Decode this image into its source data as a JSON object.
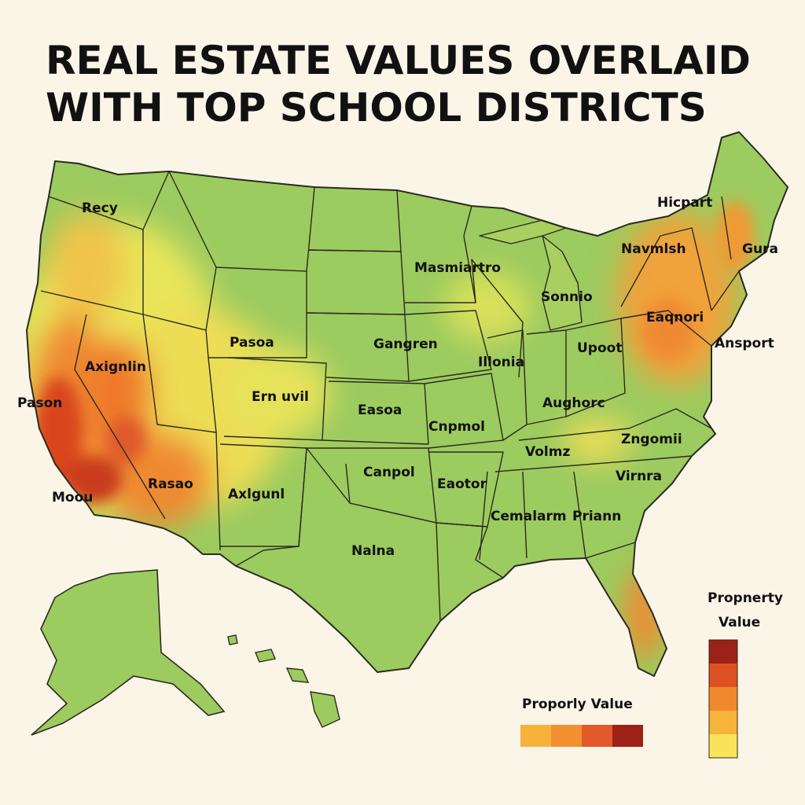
{
  "title": {
    "line1": "REAL ESTATE VALUES OVERLAID",
    "line2": "WITH TOP SCHOOL DISTRICTS"
  },
  "map": {
    "labels": {
      "recy": "Recy",
      "axignlin": "Axignlin",
      "pason": "Pason",
      "moou": "Moou",
      "rasao": "Rasao",
      "pasoa": "Pasoa",
      "ern_uvil": "Ern uvil",
      "axlgunl": "Axlgunl",
      "masmiartro": "Masmiartro",
      "gangren": "Gangren",
      "easoa": "Easoa",
      "canpol": "Canpol",
      "cnpmol": "Cnpmol",
      "nalna": "Nalna",
      "illonia": "Illonia",
      "eaotor": "Eaotor",
      "cemalarm": "Cemalarm",
      "sonnio": "Sonnio",
      "upoot": "Upoot",
      "aughorc": "Aughorc",
      "volmz": "Volmz",
      "zngomii": "Zngomii",
      "virnra": "Virnra",
      "priann": "Priann",
      "eaqnori": "Eaqnori",
      "ansport": "Ansport",
      "navmlsh": "Navmlsh",
      "gura": "Gura",
      "hicpart": "Hicpart"
    }
  },
  "legend_vertical": {
    "title_line1": "Propnerty",
    "title_line2": "Value",
    "colors": [
      "#f8e35a",
      "#f6b43a",
      "#f08a2c",
      "#dd5122",
      "#9c2116"
    ]
  },
  "legend_horizontal": {
    "title": "Proporly Value",
    "colors": [
      "#f7b23a",
      "#f28f30",
      "#e2592a",
      "#9c2116"
    ]
  },
  "colors": {
    "background": "#fbf5e8",
    "low": "#9ccb5f",
    "mid": "#e8e25a",
    "high": "#ef7b2c",
    "top": "#c93b1c"
  }
}
